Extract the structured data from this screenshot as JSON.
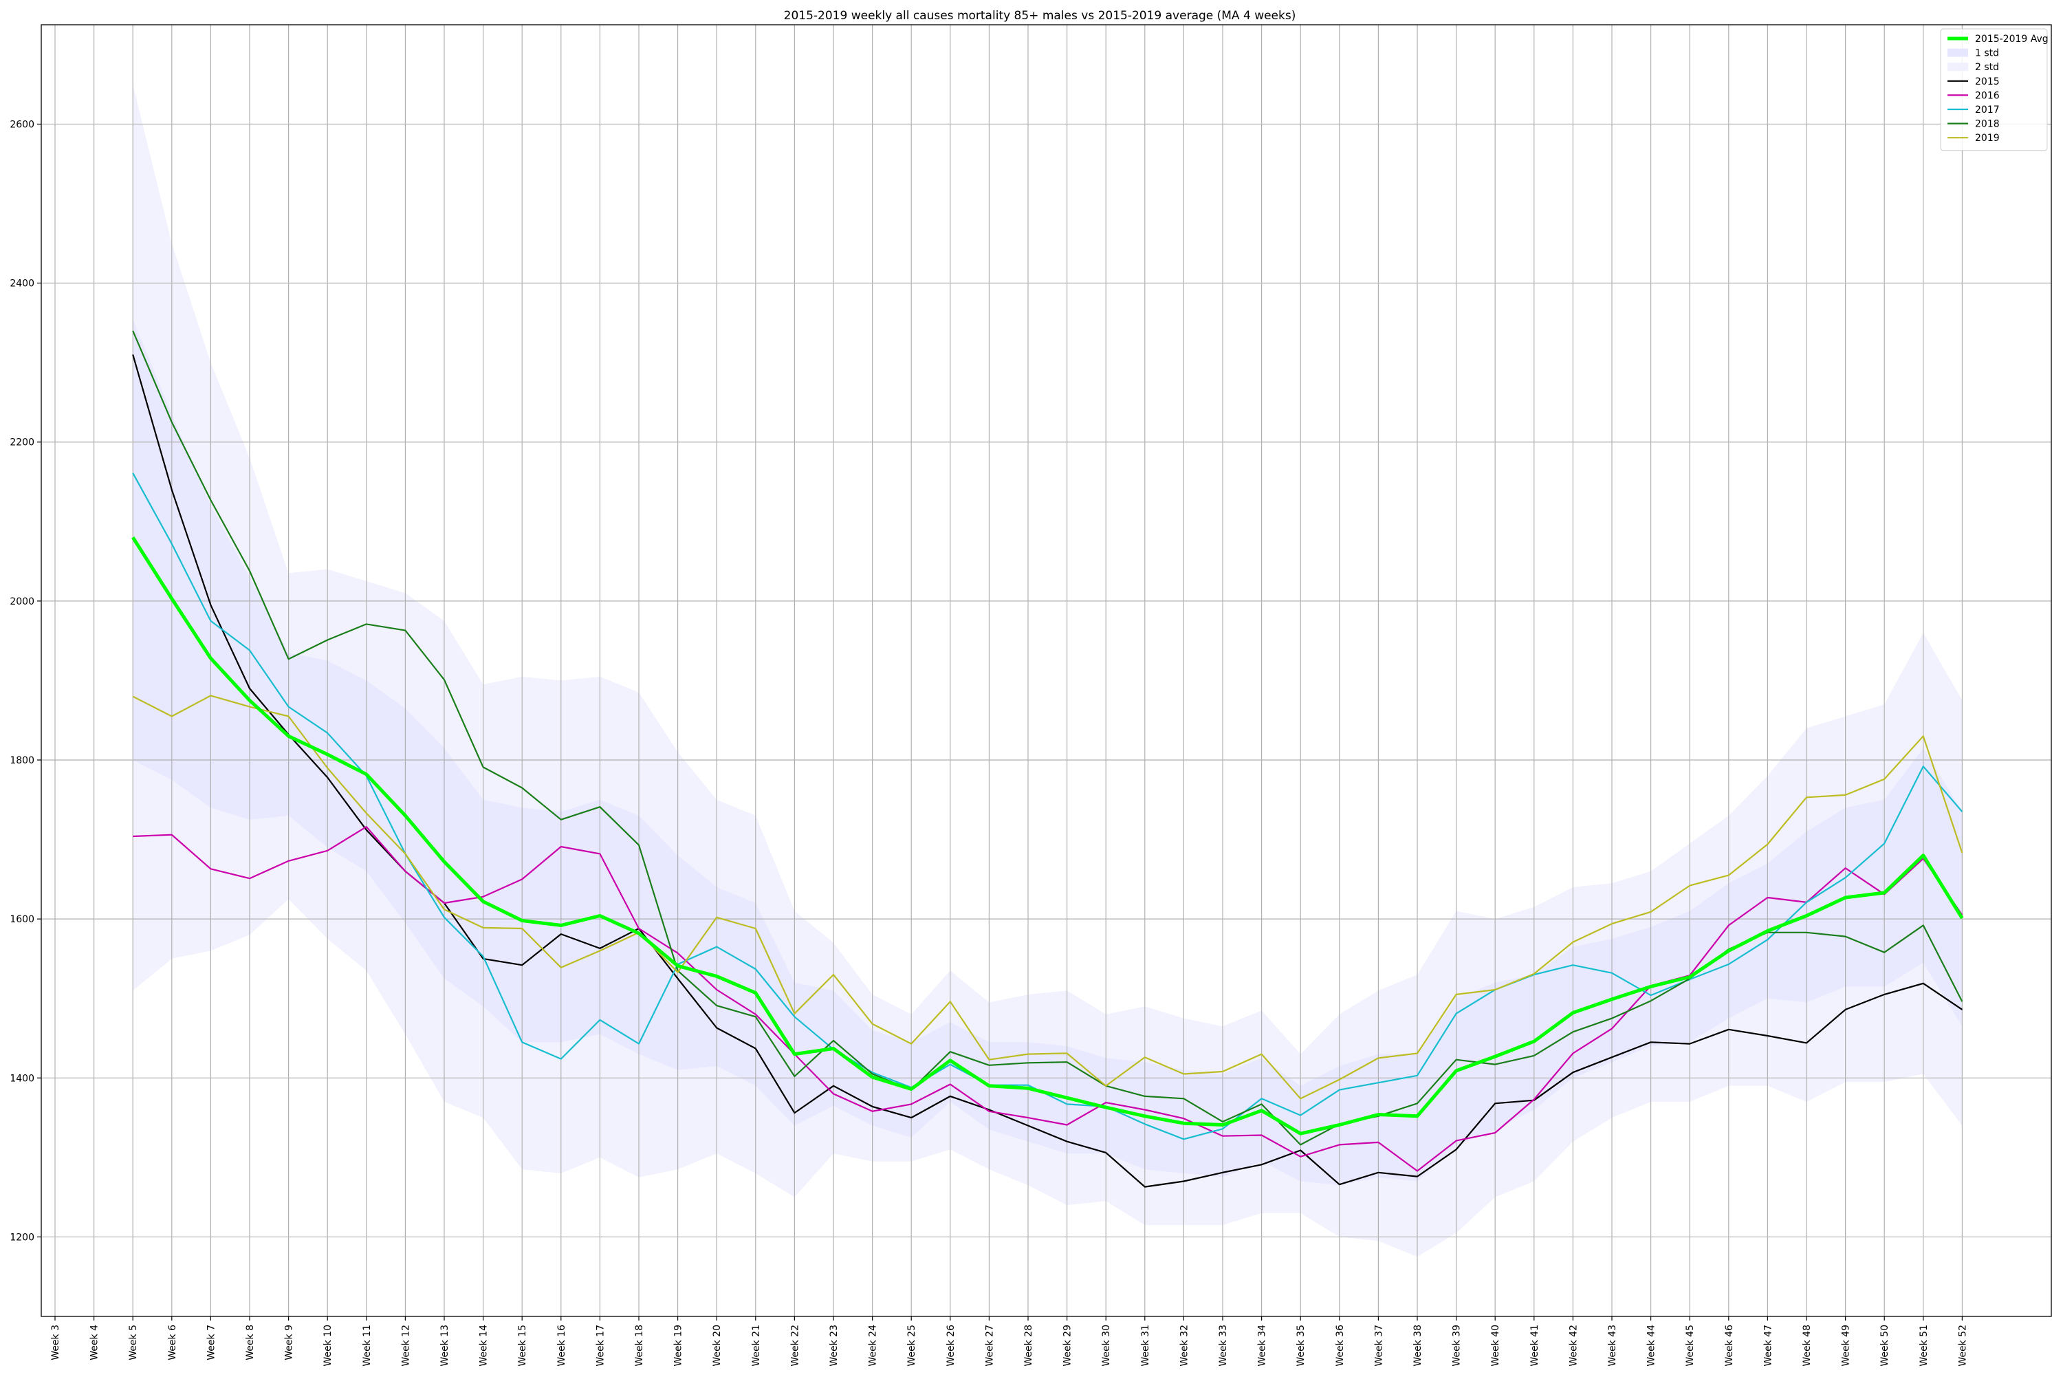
{
  "chart_data": {
    "type": "line",
    "title": "2015-2019 weekly all causes mortality 85+ males vs 2015-2019 average (MA 4 weeks)",
    "xlabel": "",
    "ylabel": "",
    "ylim": [
      1100,
      2725
    ],
    "yticks": [
      1200,
      1400,
      1600,
      1800,
      2000,
      2200,
      2400,
      2600
    ],
    "grid": true,
    "legend_position": "top-right",
    "categories": [
      "Week 3",
      "Week 4",
      "Week 5",
      "Week 6",
      "Week 7",
      "Week 8",
      "Week 9",
      "Week 10",
      "Week 11",
      "Week 12",
      "Week 13",
      "Week 14",
      "Week 15",
      "Week 16",
      "Week 17",
      "Week 18",
      "Week 19",
      "Week 20",
      "Week 21",
      "Week 22",
      "Week 23",
      "Week 24",
      "Week 25",
      "Week 26",
      "Week 27",
      "Week 28",
      "Week 29",
      "Week 30",
      "Week 31",
      "Week 32",
      "Week 33",
      "Week 34",
      "Week 35",
      "Week 36",
      "Week 37",
      "Week 38",
      "Week 39",
      "Week 40",
      "Week 41",
      "Week 42",
      "Week 43",
      "Week 44",
      "Week 45",
      "Week 46",
      "Week 47",
      "Week 48",
      "Week 49",
      "Week 50",
      "Week 51",
      "Week 52"
    ],
    "average": {
      "name": "2015-2019 Avg",
      "color": "#00ff00",
      "values": [
        null,
        null,
        2080,
        2003,
        1928,
        1875,
        1830,
        1807,
        1782,
        1730,
        1672,
        1622,
        1598,
        1592,
        1604,
        1582,
        1541,
        1528,
        1507,
        1430,
        1437,
        1401,
        1386,
        1422,
        1390,
        1387,
        1375,
        1363,
        1352,
        1343,
        1341,
        1359,
        1330,
        1341,
        1354,
        1352,
        1409,
        1427,
        1446,
        1482,
        1499,
        1515,
        1527,
        1560,
        1585,
        1604,
        1627,
        1633,
        1680,
        1601
      ]
    },
    "bands": [
      {
        "name": "1 std",
        "color": "#e6e6ff",
        "upper": [
          null,
          null,
          2355,
          2235,
          2120,
          2030,
          1935,
          1925,
          1900,
          1865,
          1815,
          1750,
          1740,
          1735,
          1750,
          1730,
          1680,
          1640,
          1620,
          1520,
          1510,
          1460,
          1445,
          1470,
          1445,
          1445,
          1440,
          1425,
          1420,
          1410,
          1405,
          1425,
          1390,
          1415,
          1430,
          1430,
          1500,
          1520,
          1530,
          1565,
          1575,
          1590,
          1610,
          1645,
          1670,
          1710,
          1740,
          1750,
          1815,
          1735
        ],
        "lower": [
          null,
          null,
          1800,
          1775,
          1740,
          1725,
          1730,
          1690,
          1660,
          1595,
          1525,
          1490,
          1445,
          1445,
          1455,
          1430,
          1410,
          1415,
          1390,
          1340,
          1365,
          1340,
          1325,
          1370,
          1335,
          1320,
          1305,
          1305,
          1285,
          1280,
          1275,
          1295,
          1270,
          1265,
          1275,
          1270,
          1315,
          1335,
          1360,
          1400,
          1420,
          1440,
          1445,
          1475,
          1500,
          1495,
          1515,
          1515,
          1545,
          1465
        ]
      },
      {
        "name": "2 std",
        "color": "#f0f0ff",
        "upper": [
          null,
          null,
          2650,
          2450,
          2300,
          2180,
          2035,
          2040,
          2025,
          2010,
          1975,
          1895,
          1905,
          1900,
          1905,
          1885,
          1810,
          1750,
          1730,
          1610,
          1570,
          1505,
          1480,
          1535,
          1495,
          1505,
          1510,
          1480,
          1490,
          1475,
          1465,
          1485,
          1430,
          1480,
          1510,
          1530,
          1610,
          1600,
          1615,
          1640,
          1645,
          1660,
          1695,
          1730,
          1780,
          1840,
          1855,
          1870,
          1960,
          1875
        ],
        "lower": [
          null,
          null,
          1510,
          1550,
          1560,
          1580,
          1625,
          1575,
          1535,
          1455,
          1370,
          1350,
          1285,
          1280,
          1300,
          1275,
          1285,
          1305,
          1280,
          1250,
          1305,
          1295,
          1295,
          1310,
          1285,
          1265,
          1240,
          1245,
          1215,
          1215,
          1215,
          1230,
          1230,
          1200,
          1195,
          1175,
          1205,
          1250,
          1270,
          1320,
          1350,
          1370,
          1370,
          1390,
          1390,
          1370,
          1395,
          1395,
          1405,
          1340
        ]
      }
    ],
    "series": [
      {
        "name": "2015",
        "color": "#000000",
        "values": [
          null,
          null,
          2310,
          2140,
          1995,
          1890,
          1832,
          1778,
          1712,
          1660,
          1620,
          1550,
          1542,
          1581,
          1563,
          1588,
          1525,
          1463,
          1437,
          1356,
          1390,
          1364,
          1350,
          1377,
          1360,
          1340,
          1320,
          1306,
          1263,
          1270,
          1281,
          1291,
          1309,
          1266,
          1281,
          1276,
          1310,
          1368,
          1372,
          1407,
          1426,
          1445,
          1443,
          1461,
          1453,
          1444,
          1486,
          1505,
          1519,
          1486
        ]
      },
      {
        "name": "2016",
        "color": "#cc00aa",
        "values": [
          null,
          null,
          1704,
          1706,
          1663,
          1651,
          1673,
          1686,
          1716,
          1660,
          1620,
          1628,
          1650,
          1691,
          1682,
          1588,
          1557,
          1511,
          1480,
          1430,
          1380,
          1358,
          1367,
          1392,
          1358,
          1350,
          1341,
          1369,
          1360,
          1349,
          1327,
          1328,
          1301,
          1316,
          1319,
          1283,
          1321,
          1331,
          1373,
          1431,
          1462,
          1516,
          1529,
          1592,
          1627,
          1621,
          1664,
          1631,
          1676,
          1605
        ]
      },
      {
        "name": "2017",
        "color": "#17becf",
        "values": [
          null,
          null,
          2161,
          2072,
          1975,
          1938,
          1867,
          1834,
          1780,
          1682,
          1602,
          1553,
          1445,
          1424,
          1473,
          1443,
          1543,
          1565,
          1537,
          1477,
          1436,
          1407,
          1388,
          1417,
          1391,
          1391,
          1367,
          1364,
          1342,
          1323,
          1336,
          1374,
          1353,
          1385,
          1394,
          1403,
          1481,
          1511,
          1530,
          1542,
          1532,
          1504,
          1524,
          1543,
          1574,
          1621,
          1652,
          1695,
          1792,
          1735
        ]
      },
      {
        "name": "2018",
        "color": "#1a7f1a",
        "values": [
          null,
          null,
          2340,
          2225,
          2127,
          2038,
          1927,
          1951,
          1971,
          1963,
          1901,
          1791,
          1765,
          1725,
          1741,
          1693,
          1535,
          1491,
          1477,
          1402,
          1447,
          1405,
          1385,
          1433,
          1416,
          1419,
          1420,
          1390,
          1377,
          1374,
          1345,
          1367,
          1316,
          1342,
          1352,
          1368,
          1423,
          1417,
          1428,
          1458,
          1475,
          1497,
          1525,
          1562,
          1583,
          1583,
          1578,
          1558,
          1592,
          1496
        ]
      },
      {
        "name": "2019",
        "color": "#bcbd22",
        "values": [
          null,
          null,
          1880,
          1855,
          1881,
          1867,
          1855,
          1790,
          1733,
          1682,
          1612,
          1589,
          1588,
          1539,
          1560,
          1583,
          1533,
          1602,
          1588,
          1481,
          1530,
          1468,
          1443,
          1496,
          1423,
          1430,
          1431,
          1390,
          1426,
          1405,
          1408,
          1430,
          1374,
          1398,
          1425,
          1431,
          1505,
          1511,
          1531,
          1571,
          1594,
          1609,
          1642,
          1655,
          1694,
          1753,
          1756,
          1776,
          1830,
          1683
        ]
      }
    ]
  }
}
